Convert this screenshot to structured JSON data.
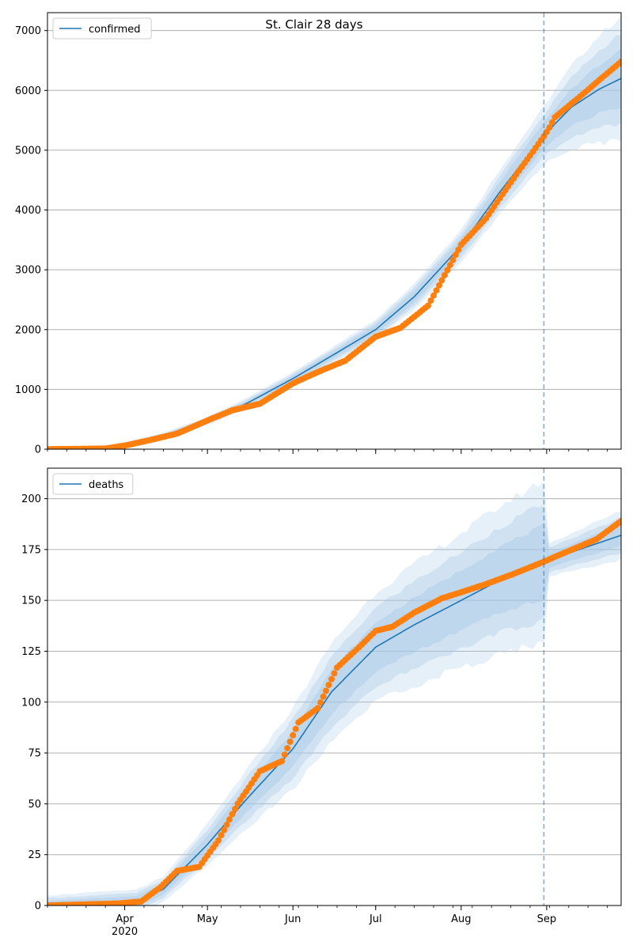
{
  "title": "St. Clair 28 days",
  "x_ticks": [
    {
      "date": "2020-04-01",
      "label": "Apr",
      "sub": "2020"
    },
    {
      "date": "2020-05-01",
      "label": "May"
    },
    {
      "date": "2020-06-01",
      "label": "Jun"
    },
    {
      "date": "2020-07-01",
      "label": "Jul"
    },
    {
      "date": "2020-08-01",
      "label": "Aug"
    },
    {
      "date": "2020-09-01",
      "label": "Sep"
    }
  ],
  "colors": {
    "model_line": "#1f77b4",
    "observed": "#ff7f0e",
    "band": "#a6c8e6",
    "grid": "#b0b0b0",
    "forecast_line": "#1f77b4"
  },
  "chart_data": [
    {
      "type": "line",
      "title": "St. Clair 28 days",
      "legend": "top-left",
      "series_name": "confirmed",
      "xlim": [
        "2020-03-04",
        "2020-09-28"
      ],
      "ylim": [
        0,
        7300
      ],
      "yticks": [
        0,
        1000,
        2000,
        3000,
        4000,
        5000,
        6000,
        7000
      ],
      "grid": "y",
      "forecast_start": "2020-08-31",
      "model_curve": [
        [
          "2020-03-04",
          0
        ],
        [
          "2020-03-20",
          10
        ],
        [
          "2020-04-01",
          80
        ],
        [
          "2020-04-15",
          220
        ],
        [
          "2020-05-01",
          470
        ],
        [
          "2020-05-15",
          760
        ],
        [
          "2020-06-01",
          1180
        ],
        [
          "2020-06-15",
          1560
        ],
        [
          "2020-07-01",
          2000
        ],
        [
          "2020-07-15",
          2550
        ],
        [
          "2020-08-01",
          3400
        ],
        [
          "2020-08-15",
          4300
        ],
        [
          "2020-08-31",
          5250
        ],
        [
          "2020-09-10",
          5720
        ],
        [
          "2020-09-20",
          6020
        ],
        [
          "2020-09-28",
          6200
        ]
      ],
      "band_spread": [
        [
          "2020-03-04",
          0
        ],
        [
          "2020-04-01",
          40
        ],
        [
          "2020-05-01",
          70
        ],
        [
          "2020-06-01",
          110
        ],
        [
          "2020-07-01",
          170
        ],
        [
          "2020-08-01",
          280
        ],
        [
          "2020-08-15",
          380
        ],
        [
          "2020-08-31",
          480
        ],
        [
          "2020-09-14",
          780
        ],
        [
          "2020-09-28",
          1050
        ]
      ],
      "observed": [
        [
          "2020-03-04",
          0
        ],
        [
          "2020-03-25",
          10
        ],
        [
          "2020-04-01",
          60
        ],
        [
          "2020-04-10",
          150
        ],
        [
          "2020-04-20",
          260
        ],
        [
          "2020-05-01",
          480
        ],
        [
          "2020-05-10",
          650
        ],
        [
          "2020-05-20",
          760
        ],
        [
          "2020-06-01",
          1100
        ],
        [
          "2020-06-10",
          1290
        ],
        [
          "2020-06-20",
          1480
        ],
        [
          "2020-07-01",
          1880
        ],
        [
          "2020-07-10",
          2030
        ],
        [
          "2020-07-20",
          2400
        ],
        [
          "2020-08-01",
          3420
        ],
        [
          "2020-08-10",
          3860
        ],
        [
          "2020-08-20",
          4530
        ],
        [
          "2020-08-31",
          5230
        ],
        [
          "2020-09-02",
          5380
        ],
        [
          "2020-09-04",
          5550
        ],
        [
          "2020-09-10",
          5780
        ],
        [
          "2020-09-15",
          5970
        ],
        [
          "2020-09-20",
          6170
        ],
        [
          "2020-09-28",
          6480
        ]
      ]
    },
    {
      "type": "line",
      "legend": "top-left",
      "series_name": "deaths",
      "xlim": [
        "2020-03-04",
        "2020-09-28"
      ],
      "ylim": [
        0,
        215
      ],
      "yticks": [
        0,
        25,
        50,
        75,
        100,
        125,
        150,
        175,
        200
      ],
      "grid": "y",
      "forecast_start": "2020-08-31",
      "model_curve": [
        [
          "2020-03-04",
          0
        ],
        [
          "2020-04-05",
          2
        ],
        [
          "2020-04-15",
          8
        ],
        [
          "2020-05-01",
          30
        ],
        [
          "2020-05-15",
          52
        ],
        [
          "2020-06-01",
          77
        ],
        [
          "2020-06-15",
          105
        ],
        [
          "2020-07-01",
          127
        ],
        [
          "2020-07-15",
          138
        ],
        [
          "2020-08-01",
          150
        ],
        [
          "2020-08-15",
          160
        ],
        [
          "2020-08-31",
          169
        ],
        [
          "2020-09-15",
          176
        ],
        [
          "2020-09-28",
          182
        ]
      ],
      "band_spread": [
        [
          "2020-03-04",
          5
        ],
        [
          "2020-04-15",
          6
        ],
        [
          "2020-05-01",
          10
        ],
        [
          "2020-05-20",
          16
        ],
        [
          "2020-06-01",
          20
        ],
        [
          "2020-06-15",
          24
        ],
        [
          "2020-07-01",
          27
        ],
        [
          "2020-08-01",
          33
        ],
        [
          "2020-08-31",
          40
        ],
        [
          "2020-09-01",
          8
        ],
        [
          "2020-09-28",
          12
        ]
      ],
      "observed": [
        [
          "2020-03-04",
          0
        ],
        [
          "2020-03-30",
          1
        ],
        [
          "2020-04-07",
          2
        ],
        [
          "2020-04-14",
          9
        ],
        [
          "2020-04-20",
          17
        ],
        [
          "2020-04-28",
          19
        ],
        [
          "2020-05-05",
          32
        ],
        [
          "2020-05-12",
          50
        ],
        [
          "2020-05-20",
          66
        ],
        [
          "2020-05-28",
          71
        ],
        [
          "2020-06-03",
          90
        ],
        [
          "2020-06-10",
          97
        ],
        [
          "2020-06-17",
          117
        ],
        [
          "2020-06-25",
          127
        ],
        [
          "2020-07-01",
          135
        ],
        [
          "2020-07-07",
          137
        ],
        [
          "2020-07-15",
          144
        ],
        [
          "2020-07-25",
          151
        ],
        [
          "2020-08-01",
          154
        ],
        [
          "2020-08-10",
          158
        ],
        [
          "2020-08-20",
          163
        ],
        [
          "2020-08-31",
          169
        ],
        [
          "2020-09-05",
          172
        ],
        [
          "2020-09-12",
          176
        ],
        [
          "2020-09-19",
          180
        ],
        [
          "2020-09-28",
          189
        ]
      ]
    }
  ]
}
